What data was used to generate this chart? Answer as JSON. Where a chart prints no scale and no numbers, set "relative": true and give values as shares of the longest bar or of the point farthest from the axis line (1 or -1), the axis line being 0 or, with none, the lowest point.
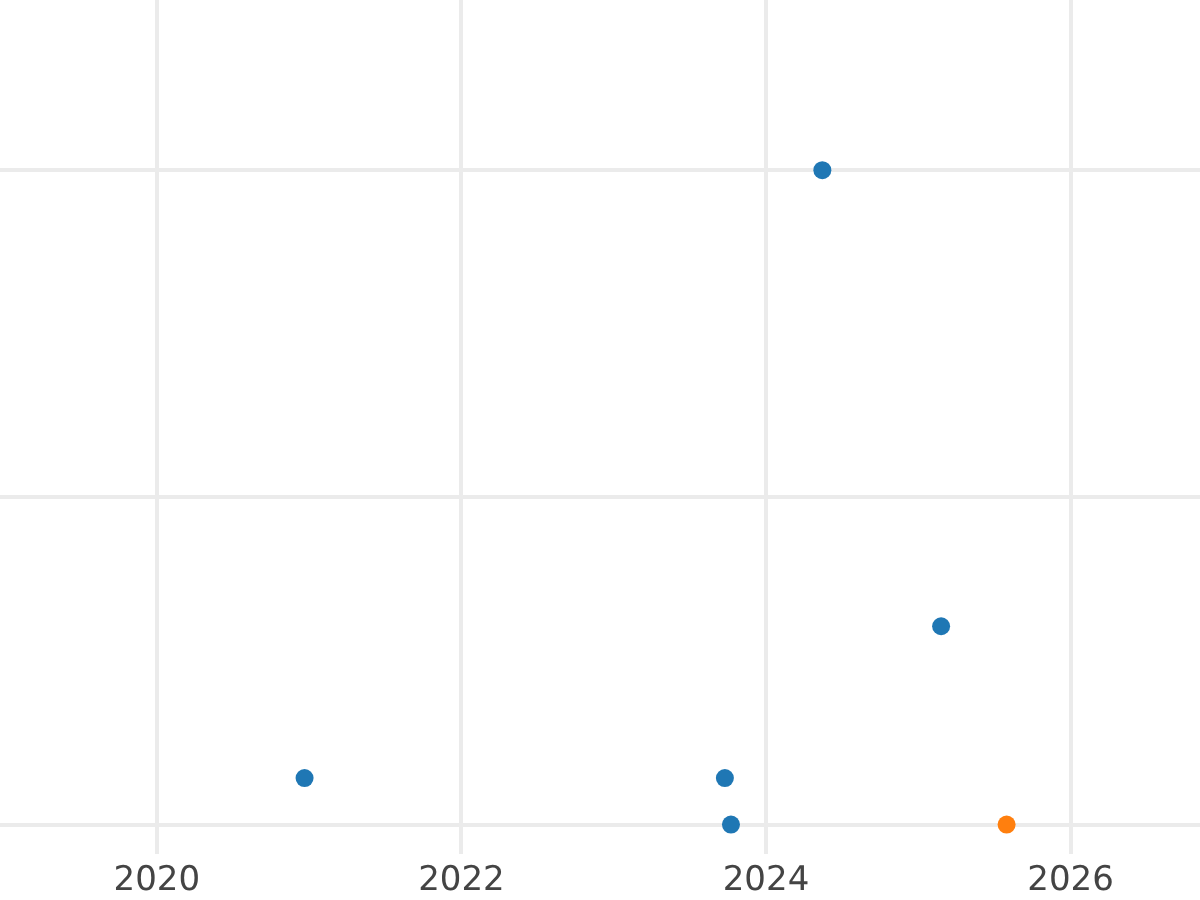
{
  "chart_data": {
    "type": "scatter",
    "relative": true,
    "xlim": [
      2018.97,
      2026.85
    ],
    "xticks": [
      2020,
      2022,
      2024,
      2026
    ],
    "grid": true,
    "marker": "circle",
    "tick_labels": "x",
    "series": [
      {
        "color": "#1f77b4",
        "x": [
          2020.97,
          2023.73,
          2023.77,
          2024.37,
          2025.15
        ],
        "values": [
          0.071,
          0.071,
          0,
          1,
          0.303
        ]
      },
      {
        "color": "#ff7f0e",
        "x": [
          2025.58
        ],
        "values": [
          0
        ]
      }
    ]
  }
}
